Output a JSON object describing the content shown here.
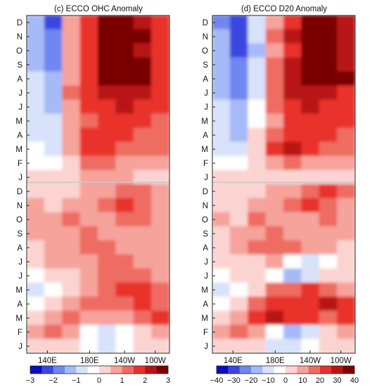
{
  "chart_data": [
    {
      "type": "heatmap",
      "title": "(c) ECCO OHC Anomaly",
      "x_ticks": [
        "140E",
        "180E",
        "140W",
        "100W"
      ],
      "y_ticks": [
        "D",
        "N",
        "O",
        "S",
        "A",
        "J",
        "J",
        "M",
        "A",
        "M",
        "F",
        "J",
        "D",
        "N",
        "O",
        "S",
        "A",
        "J",
        "J",
        "M",
        "A",
        "M",
        "F",
        "J"
      ],
      "colorbar": {
        "ticks": [
          "−3",
          "−2",
          "−1",
          "0",
          "1",
          "2",
          "3"
        ],
        "range": [
          -3,
          3
        ],
        "colors": [
          "#0b0bc6",
          "#3b46e0",
          "#6f86f0",
          "#a6baf8",
          "#d8e2fb",
          "#ffffff",
          "#fbd4d1",
          "#f5a39b",
          "#ef6c62",
          "#e8302a",
          "#b81414",
          "#7a0000"
        ]
      },
      "grid_x": [
        135,
        155,
        175,
        195,
        215,
        235,
        255,
        275
      ],
      "grid_y": [
        0,
        1,
        2,
        3,
        4,
        5,
        6,
        7,
        8,
        9,
        10,
        11,
        12,
        13,
        14,
        15,
        16,
        17,
        18,
        19,
        20,
        21,
        22,
        23
      ],
      "values": [
        [
          -1.5,
          -2.2,
          0.8,
          1.8,
          2.6,
          2.9,
          2.4,
          1.6
        ],
        [
          -1.3,
          -2.0,
          0.7,
          1.7,
          2.7,
          3.0,
          2.5,
          1.7
        ],
        [
          -1.2,
          -1.8,
          0.5,
          1.6,
          2.5,
          2.8,
          2.3,
          1.6
        ],
        [
          -1.1,
          -1.6,
          0.9,
          1.9,
          2.7,
          3.0,
          2.6,
          1.8
        ],
        [
          -1.0,
          -1.4,
          0.8,
          1.7,
          2.8,
          3.1,
          2.7,
          1.9
        ],
        [
          -1.0,
          -1.2,
          1.0,
          1.8,
          2.2,
          2.4,
          2.1,
          1.7
        ],
        [
          -0.9,
          -1.1,
          0.9,
          1.6,
          1.9,
          2.0,
          1.8,
          1.5
        ],
        [
          -0.8,
          -1.0,
          0.7,
          1.4,
          1.7,
          1.8,
          1.7,
          1.4
        ],
        [
          -0.6,
          -0.8,
          0.6,
          1.5,
          1.8,
          1.6,
          1.4,
          1.2
        ],
        [
          -0.5,
          -0.6,
          0.5,
          1.7,
          1.9,
          1.4,
          1.1,
          1.0
        ],
        [
          -0.3,
          -0.4,
          0.3,
          1.0,
          1.2,
          0.9,
          0.7,
          0.6
        ],
        [
          0.2,
          0.0,
          0.3,
          0.5,
          0.6,
          0.5,
          0.4,
          0.3
        ],
        [
          0.4,
          0.1,
          0.4,
          0.6,
          0.9,
          1.3,
          1.0,
          0.7
        ],
        [
          0.5,
          0.3,
          0.6,
          0.8,
          1.1,
          1.5,
          1.3,
          0.8
        ],
        [
          0.6,
          0.5,
          1.0,
          0.9,
          0.8,
          1.0,
          1.2,
          0.9
        ],
        [
          0.5,
          0.6,
          0.9,
          1.1,
          0.9,
          0.8,
          0.9,
          0.8
        ],
        [
          0.4,
          0.7,
          0.8,
          1.2,
          1.1,
          0.9,
          0.8,
          0.7
        ],
        [
          0.3,
          0.6,
          0.5,
          0.9,
          1.3,
          1.0,
          0.7,
          0.6
        ],
        [
          -0.1,
          0.2,
          0.3,
          0.6,
          1.0,
          1.4,
          1.1,
          0.8
        ],
        [
          -0.6,
          -0.3,
          0.4,
          0.8,
          1.2,
          1.6,
          1.5,
          1.2
        ],
        [
          -0.4,
          0.3,
          0.9,
          1.1,
          1.0,
          1.3,
          1.7,
          1.4
        ],
        [
          0.3,
          0.8,
          1.1,
          0.9,
          0.8,
          0.9,
          1.2,
          1.5
        ],
        [
          0.5,
          1.0,
          0.5,
          -0.2,
          -0.8,
          -0.5,
          0.3,
          0.6
        ],
        [
          0.2,
          0.4,
          0.0,
          -0.4,
          -0.6,
          -0.3,
          0.1,
          0.2
        ]
      ]
    },
    {
      "type": "heatmap",
      "title": "(d) ECCO D20 Anomaly",
      "x_ticks": [
        "140E",
        "180E",
        "140W",
        "100W"
      ],
      "y_ticks": [
        "D",
        "N",
        "O",
        "S",
        "A",
        "J",
        "J",
        "M",
        "A",
        "M",
        "F",
        "J",
        "D",
        "N",
        "O",
        "S",
        "A",
        "J",
        "J",
        "M",
        "A",
        "M",
        "F",
        "J"
      ],
      "colorbar": {
        "ticks": [
          "−40",
          "−30",
          "−20",
          "−10",
          "0",
          "10",
          "20",
          "30",
          "40"
        ],
        "range": [
          -40,
          40
        ],
        "colors": [
          "#0b0bc6",
          "#3b46e0",
          "#6f86f0",
          "#a6baf8",
          "#d8e2fb",
          "#ffffff",
          "#fbd4d1",
          "#f5a39b",
          "#ef6c62",
          "#e8302a",
          "#b81414",
          "#7a0000"
        ]
      },
      "grid_x": [
        135,
        155,
        175,
        195,
        215,
        235,
        255,
        275
      ],
      "grid_y": [
        0,
        1,
        2,
        3,
        4,
        5,
        6,
        7,
        8,
        9,
        10,
        11,
        12,
        13,
        14,
        15,
        16,
        17,
        18,
        19,
        20,
        21,
        22,
        23
      ],
      "values": [
        [
          -22,
          -32,
          -10,
          12,
          26,
          34,
          38,
          30
        ],
        [
          -20,
          -30,
          -12,
          14,
          28,
          37,
          40,
          32
        ],
        [
          -18,
          -28,
          -14,
          10,
          25,
          36,
          38,
          30
        ],
        [
          -16,
          -26,
          -12,
          15,
          30,
          38,
          40,
          33
        ],
        [
          -15,
          -24,
          -10,
          14,
          32,
          39,
          38,
          34
        ],
        [
          -14,
          -22,
          -8,
          16,
          28,
          30,
          28,
          26
        ],
        [
          -13,
          -20,
          -6,
          14,
          25,
          27,
          26,
          24
        ],
        [
          -12,
          -18,
          -4,
          13,
          22,
          24,
          24,
          22
        ],
        [
          -10,
          -15,
          2,
          18,
          25,
          22,
          20,
          18
        ],
        [
          -8,
          -12,
          4,
          20,
          27,
          20,
          16,
          14
        ],
        [
          -4,
          -6,
          2,
          12,
          14,
          12,
          10,
          8
        ],
        [
          3,
          0,
          2,
          5,
          6,
          6,
          5,
          3
        ],
        [
          5,
          2,
          6,
          8,
          12,
          18,
          22,
          14
        ],
        [
          6,
          4,
          8,
          12,
          15,
          20,
          18,
          10
        ],
        [
          8,
          6,
          14,
          12,
          10,
          12,
          14,
          10
        ],
        [
          6,
          8,
          12,
          16,
          12,
          8,
          10,
          8
        ],
        [
          5,
          10,
          14,
          18,
          16,
          12,
          8,
          6
        ],
        [
          3,
          6,
          5,
          8,
          -6,
          -12,
          -4,
          2
        ],
        [
          -2,
          2,
          4,
          -6,
          -14,
          -8,
          6,
          4
        ],
        [
          -8,
          -4,
          6,
          14,
          18,
          22,
          16,
          12
        ],
        [
          -6,
          4,
          14,
          20,
          22,
          26,
          30,
          20
        ],
        [
          4,
          12,
          24,
          28,
          24,
          20,
          18,
          22
        ],
        [
          8,
          16,
          8,
          -6,
          -14,
          -10,
          4,
          10
        ],
        [
          4,
          6,
          0,
          -8,
          -12,
          -6,
          2,
          4
        ]
      ]
    }
  ]
}
